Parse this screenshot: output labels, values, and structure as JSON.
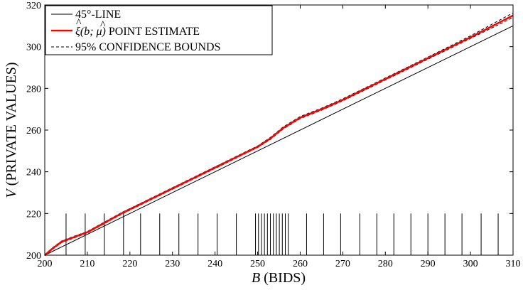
{
  "chart_data": {
    "type": "line",
    "xlabel_var": "B",
    "xlabel_rest": " (BIDS)",
    "ylabel_var": "V",
    "ylabel_rest": " (PRIVATE VALUES)",
    "xlim": [
      200,
      310
    ],
    "ylim": [
      200,
      320
    ],
    "x_ticks": [
      200,
      210,
      220,
      230,
      240,
      250,
      260,
      270,
      280,
      290,
      300,
      310
    ],
    "y_ticks": [
      200,
      220,
      240,
      260,
      280,
      300,
      320
    ],
    "grid": false,
    "legend_position": "top-left",
    "series": [
      {
        "name": "45°-LINE",
        "style": "solid",
        "color": "#000000",
        "x": [
          200,
          310
        ],
        "y": [
          200,
          310
        ]
      },
      {
        "name": "ξ̂(b; μ̂) POINT ESTIMATE",
        "style": "solid",
        "color": "#ff0000",
        "x": [
          200,
          202,
          204,
          206,
          210,
          214,
          218,
          230,
          240,
          250,
          253,
          256,
          260,
          265,
          270,
          280,
          290,
          300,
          310
        ],
        "y": [
          200,
          203.5,
          206.5,
          208,
          211,
          215.5,
          220,
          232,
          242,
          252,
          256,
          261,
          266,
          270,
          274.5,
          284.5,
          294.5,
          304.5,
          315
        ]
      },
      {
        "name": "95% CONFIDENCE BOUNDS",
        "style": "dashed",
        "color": "#000000",
        "x": [
          200,
          202,
          204,
          206,
          210,
          214,
          218,
          230,
          240,
          250,
          253,
          256,
          260,
          265,
          270,
          280,
          290,
          300,
          310
        ],
        "y": [
          200.3,
          203.9,
          206.9,
          208.4,
          211.4,
          215.9,
          220.4,
          232.4,
          242.4,
          252.4,
          256.5,
          261.5,
          266.5,
          270.5,
          275,
          285,
          295,
          305.2,
          316.2
        ]
      },
      {
        "name": "95% CONFIDENCE BOUNDS",
        "style": "dashed",
        "color": "#000000",
        "x": [
          200,
          202,
          204,
          206,
          210,
          214,
          218,
          230,
          240,
          250,
          253,
          256,
          260,
          265,
          270,
          280,
          290,
          300,
          310
        ],
        "y": [
          199.7,
          203.1,
          206.1,
          207.6,
          210.6,
          215.1,
          219.6,
          231.6,
          241.6,
          251.6,
          255.5,
          260.5,
          265.5,
          269.5,
          274,
          284,
          294,
          303.9,
          314
        ]
      }
    ],
    "bid_ticks": [
      205,
      209.5,
      214,
      218.5,
      222.5,
      227,
      231.5,
      236,
      240.5,
      245,
      249.5,
      250.2,
      250.9,
      251.6,
      252.3,
      253,
      253.7,
      254.4,
      255.1,
      255.8,
      256.5,
      257.2,
      261.5,
      265.5,
      269.5,
      274,
      278,
      282,
      286,
      290,
      294,
      298,
      302.5,
      306.5
    ],
    "bid_tick_height": 20,
    "legend": [
      {
        "text": "45°-LINE",
        "color": "#000000",
        "style": "solid"
      },
      {
        "text": " POINT ESTIMATE",
        "prefix": "ξ",
        "args": "(b; μ)",
        "color": "#ff0000",
        "style": "solid"
      },
      {
        "text": "95% CONFIDENCE BOUNDS",
        "color": "#000000",
        "style": "dashed"
      }
    ]
  }
}
